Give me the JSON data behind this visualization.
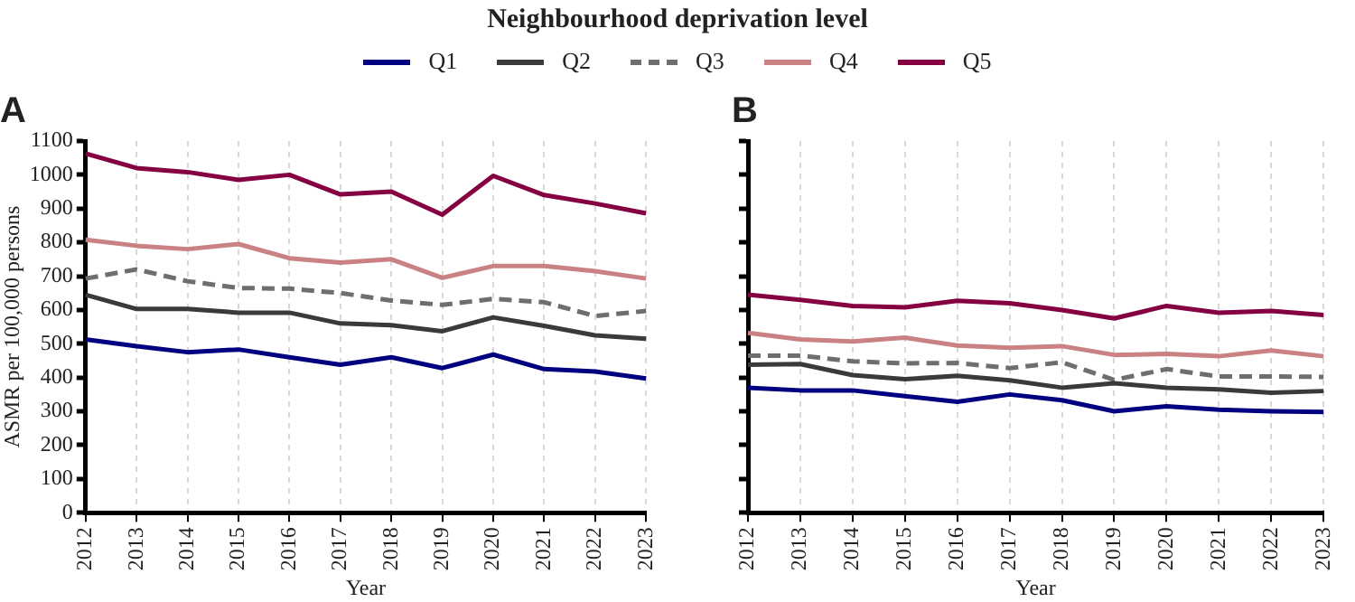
{
  "chart_data": [
    {
      "type": "line",
      "title": "A",
      "legend_title": "Neighbourhood deprivation level",
      "legend": "top",
      "xlabel": "Year",
      "ylabel": "ASMR per 100,000 persons",
      "grid": "x",
      "marker": "none",
      "categories": [
        "2012",
        "2013",
        "2014",
        "2015",
        "2016",
        "2017",
        "2018",
        "2019",
        "2020",
        "2021",
        "2022",
        "2023"
      ],
      "ylim": [
        0,
        1100
      ],
      "yticks": [
        0,
        100,
        200,
        300,
        400,
        500,
        600,
        700,
        800,
        900,
        1000,
        1100
      ],
      "series": [
        {
          "name": "Q1",
          "color": "#000080",
          "line_style": "solid",
          "values": [
            513,
            493,
            475,
            483,
            460,
            438,
            460,
            428,
            468,
            425,
            418,
            397
          ]
        },
        {
          "name": "Q2",
          "color": "#3a3a3a",
          "line_style": "solid",
          "values": [
            645,
            603,
            603,
            592,
            592,
            560,
            555,
            537,
            578,
            553,
            525,
            515
          ]
        },
        {
          "name": "Q3",
          "color": "#6e6e6e",
          "line_style": "dashed",
          "values": [
            693,
            720,
            685,
            665,
            663,
            650,
            628,
            615,
            633,
            623,
            582,
            597
          ]
        },
        {
          "name": "Q4",
          "color": "#c98183",
          "line_style": "solid",
          "values": [
            808,
            790,
            780,
            795,
            753,
            740,
            750,
            695,
            730,
            730,
            715,
            693
          ]
        },
        {
          "name": "Q5",
          "color": "#850040",
          "line_style": "solid",
          "values": [
            1063,
            1020,
            1008,
            985,
            1000,
            942,
            950,
            882,
            997,
            940,
            915,
            886
          ]
        }
      ]
    },
    {
      "type": "line",
      "title": "B",
      "xlabel": "Year",
      "grid": "x",
      "marker": "none",
      "tick_labels": "x",
      "categories": [
        "2012",
        "2013",
        "2014",
        "2015",
        "2016",
        "2017",
        "2018",
        "2019",
        "2020",
        "2021",
        "2022",
        "2023"
      ],
      "ylim": [
        0,
        1100
      ],
      "yticks": [
        0,
        100,
        200,
        300,
        400,
        500,
        600,
        700,
        800,
        900,
        1000,
        1100
      ],
      "series": [
        {
          "color": "#000080",
          "line_style": "solid",
          "values": [
            370,
            362,
            362,
            345,
            328,
            350,
            333,
            300,
            315,
            305,
            300,
            298
          ]
        },
        {
          "color": "#3a3a3a",
          "line_style": "solid",
          "values": [
            438,
            440,
            407,
            395,
            405,
            392,
            370,
            383,
            370,
            365,
            355,
            360
          ]
        },
        {
          "color": "#6e6e6e",
          "line_style": "dashed",
          "values": [
            465,
            465,
            448,
            442,
            443,
            428,
            445,
            393,
            425,
            403,
            403,
            402
          ]
        },
        {
          "color": "#c98183",
          "line_style": "solid",
          "values": [
            532,
            513,
            507,
            518,
            495,
            488,
            493,
            467,
            470,
            463,
            480,
            463
          ]
        },
        {
          "color": "#850040",
          "line_style": "solid",
          "values": [
            645,
            630,
            612,
            608,
            627,
            620,
            600,
            575,
            612,
            592,
            597,
            585
          ]
        }
      ]
    }
  ]
}
